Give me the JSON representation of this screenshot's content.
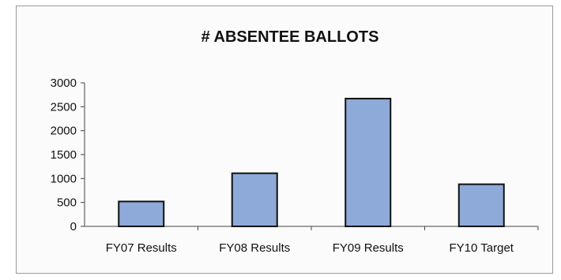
{
  "chart_data": {
    "type": "bar",
    "title": "# ABSENTEE BALLOTS",
    "xlabel": "",
    "ylabel": "",
    "categories": [
      "FY07 Results",
      "FY08 Results",
      "FY09 Results",
      "FY10 Target"
    ],
    "values": [
      520,
      1110,
      2670,
      880
    ],
    "ylim": [
      0,
      3000
    ],
    "yticks": [
      0,
      500,
      1000,
      1500,
      2000,
      2500,
      3000
    ],
    "grid": false,
    "legend": "none",
    "bar_color": "#8eaad8",
    "bar_edge_color": "#111111"
  }
}
